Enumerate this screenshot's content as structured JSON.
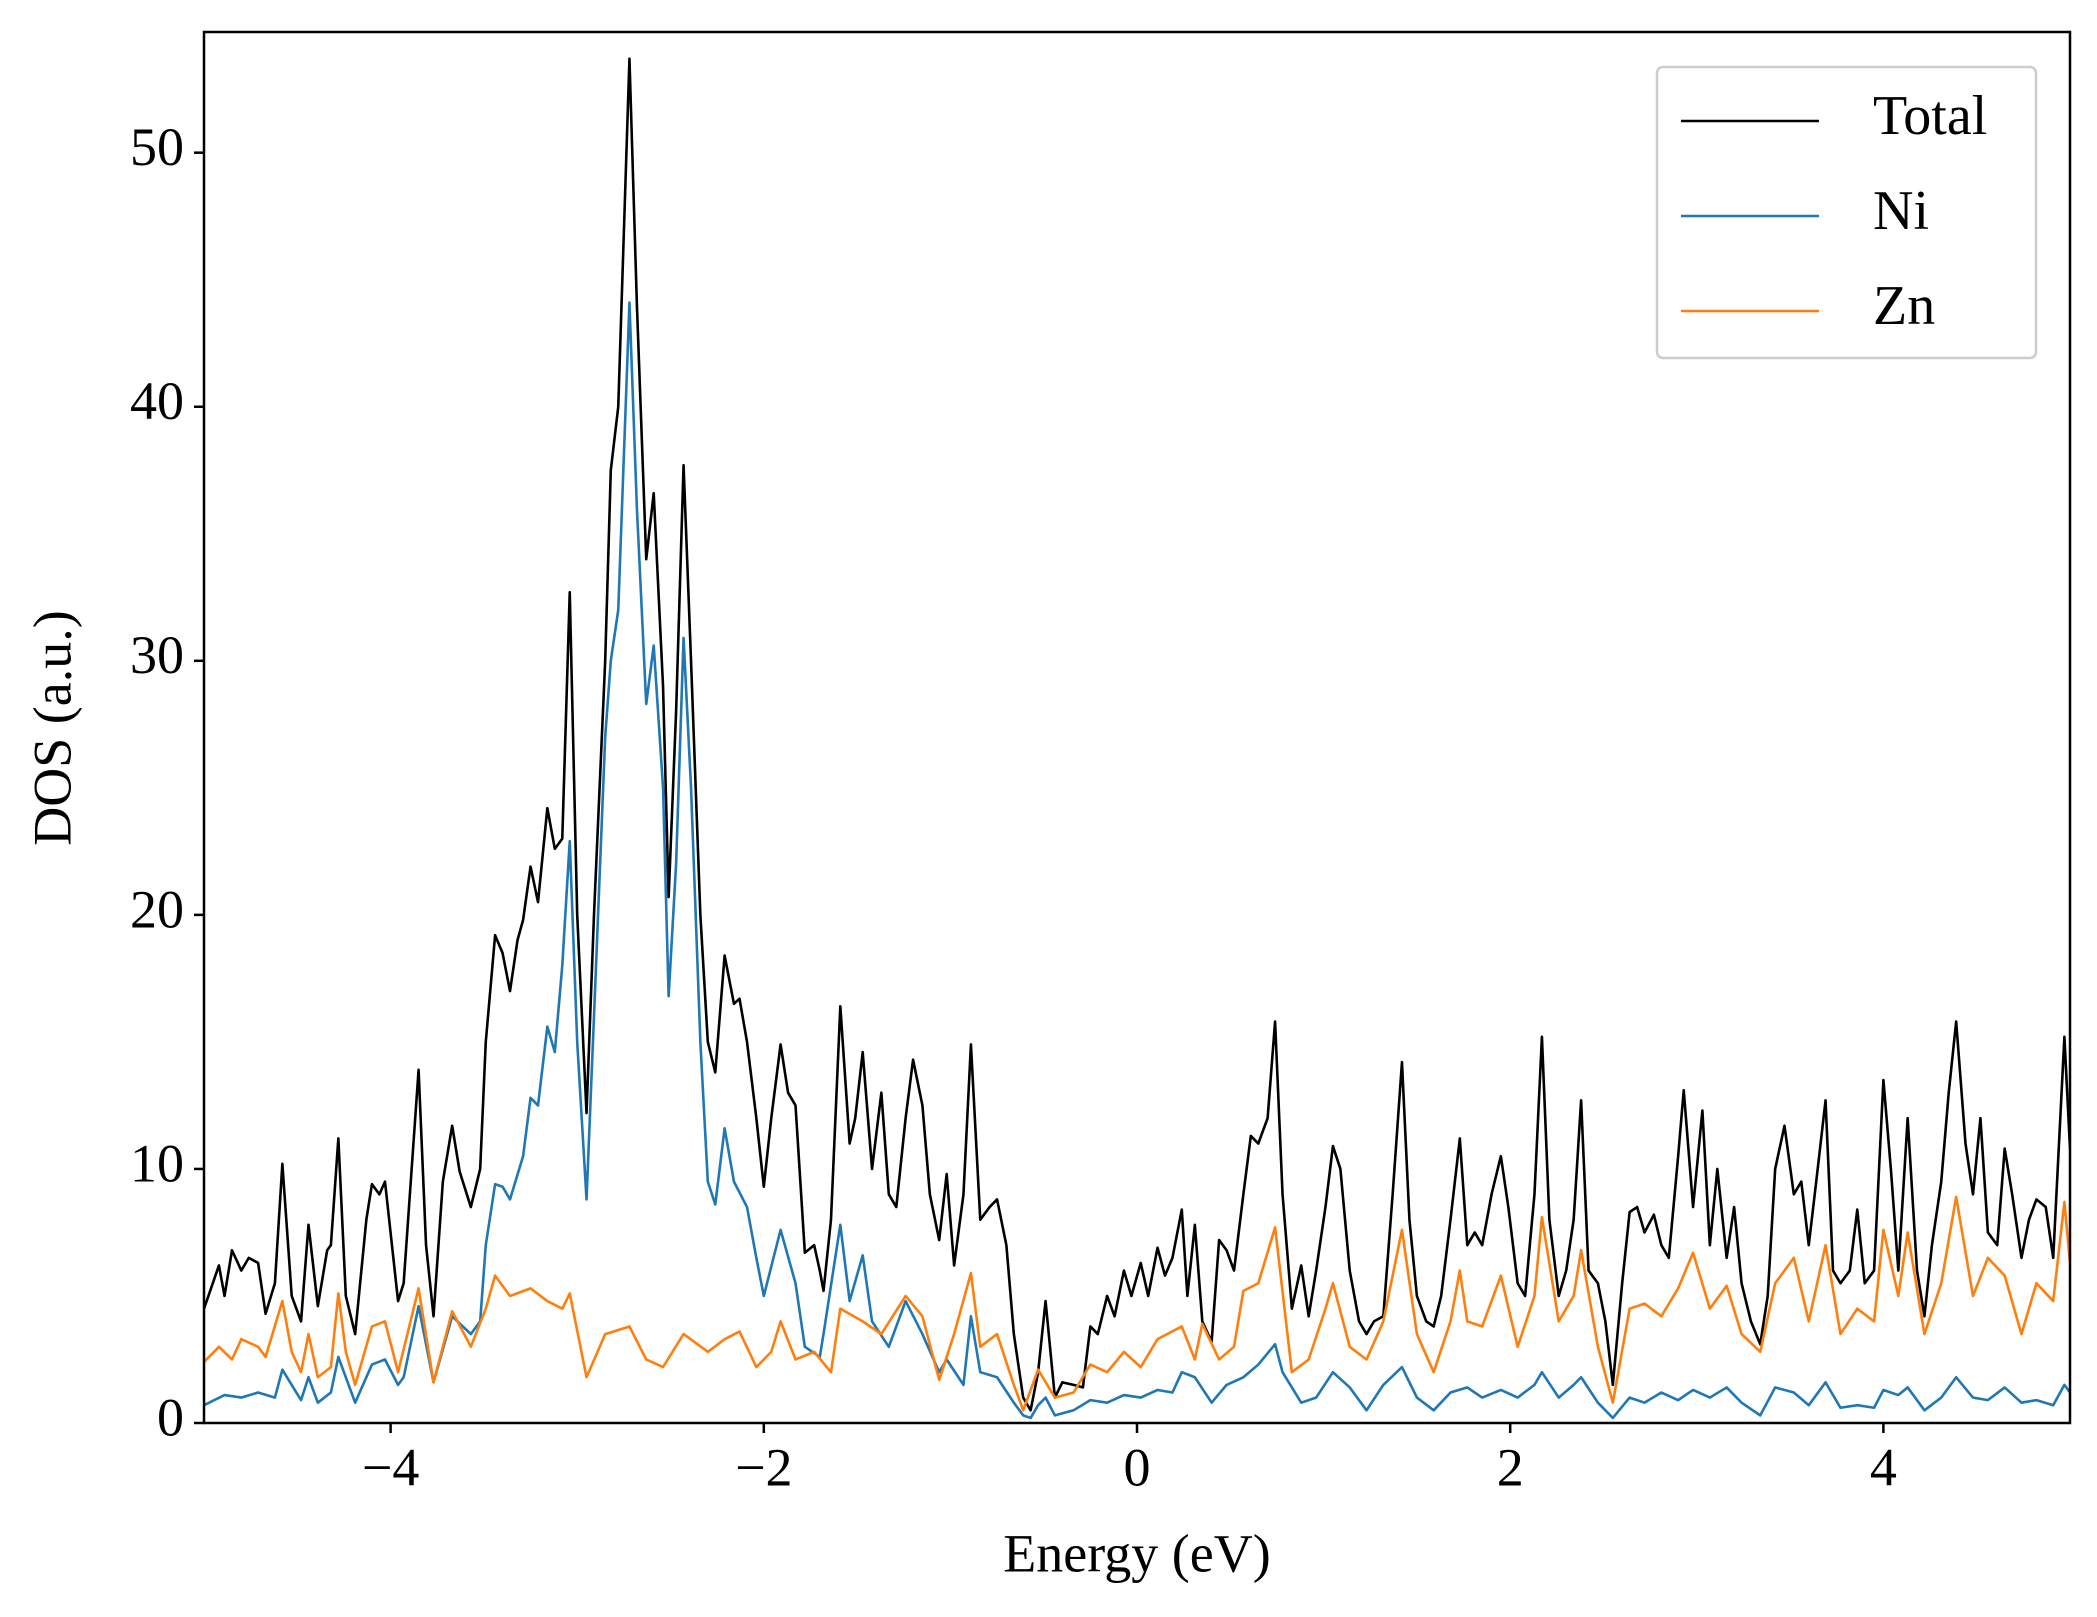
{
  "chart_data": {
    "type": "line",
    "xlabel": "Energy (eV)",
    "ylabel": "DOS (a.u.)",
    "xlim": [
      -5,
      5
    ],
    "ylim": [
      0,
      54.75
    ],
    "xticks": [
      {
        "value": -4,
        "label": "−4"
      },
      {
        "value": -2,
        "label": "−2"
      },
      0,
      2,
      4
    ],
    "yticks": [
      0,
      10,
      20,
      30,
      40,
      50
    ],
    "legend": "upper right",
    "grid": false,
    "series": [
      {
        "name": "Total",
        "color": "#000000",
        "x": [
          -5,
          -4.92,
          -4.89,
          -4.85,
          -4.8,
          -4.76,
          -4.71,
          -4.67,
          -4.62,
          -4.58,
          -4.53,
          -4.48,
          -4.44,
          -4.39,
          -4.34,
          -4.32,
          -4.28,
          -4.24,
          -4.19,
          -4.13,
          -4.1,
          -4.06,
          -4.03,
          -3.96,
          -3.93,
          -3.85,
          -3.81,
          -3.77,
          -3.72,
          -3.67,
          -3.63,
          -3.57,
          -3.52,
          -3.49,
          -3.44,
          -3.4,
          -3.36,
          -3.32,
          -3.29,
          -3.25,
          -3.21,
          -3.16,
          -3.12,
          -3.08,
          -3.04,
          -3.0,
          -2.95,
          -2.91,
          -2.85,
          -2.82,
          -2.78,
          -2.72,
          -2.68,
          -2.63,
          -2.59,
          -2.54,
          -2.51,
          -2.47,
          -2.43,
          -2.39,
          -2.34,
          -2.3,
          -2.26,
          -2.21,
          -2.16,
          -2.13,
          -2.09,
          -2.04,
          -2.0,
          -1.96,
          -1.91,
          -1.87,
          -1.83,
          -1.78,
          -1.73,
          -1.7,
          -1.68,
          -1.64,
          -1.59,
          -1.54,
          -1.51,
          -1.47,
          -1.42,
          -1.37,
          -1.33,
          -1.29,
          -1.24,
          -1.2,
          -1.15,
          -1.11,
          -1.06,
          -1.02,
          -0.98,
          -0.93,
          -0.89,
          -0.84,
          -0.79,
          -0.75,
          -0.7,
          -0.66,
          -0.61,
          -0.57,
          -0.53,
          -0.49,
          -0.44,
          -0.4,
          -0.34,
          -0.29,
          -0.25,
          -0.21,
          -0.16,
          -0.12,
          -0.07,
          -0.03,
          0.02,
          0.06,
          0.11,
          0.15,
          0.19,
          0.24,
          0.27,
          0.31,
          0.35,
          0.4,
          0.44,
          0.48,
          0.52,
          0.57,
          0.61,
          0.65,
          0.7,
          0.74,
          0.78,
          0.83,
          0.88,
          0.92,
          0.96,
          1.01,
          1.05,
          1.09,
          1.14,
          1.19,
          1.23,
          1.27,
          1.32,
          1.37,
          1.42,
          1.46,
          1.5,
          1.55,
          1.59,
          1.63,
          1.68,
          1.73,
          1.77,
          1.81,
          1.85,
          1.9,
          1.95,
          1.99,
          2.04,
          2.08,
          2.13,
          2.17,
          2.21,
          2.26,
          2.3,
          2.34,
          2.38,
          2.42,
          2.47,
          2.51,
          2.55,
          2.6,
          2.64,
          2.68,
          2.72,
          2.77,
          2.81,
          2.85,
          2.9,
          2.93,
          2.98,
          3.03,
          3.07,
          3.11,
          3.16,
          3.2,
          3.24,
          3.29,
          3.34,
          3.38,
          3.42,
          3.47,
          3.52,
          3.56,
          3.6,
          3.64,
          3.69,
          3.73,
          3.77,
          3.82,
          3.86,
          3.9,
          3.95,
          4.0,
          4.04,
          4.08,
          4.13,
          4.18,
          4.22,
          4.26,
          4.31,
          4.35,
          4.39,
          4.44,
          4.48,
          4.52,
          4.56,
          4.61,
          4.65,
          4.69,
          4.74,
          4.78,
          4.82,
          4.87,
          4.91,
          4.97,
          5.0
        ],
        "values": [
          4.5,
          6.2,
          5.0,
          6.8,
          6.0,
          6.5,
          6.3,
          4.3,
          5.5,
          10.2,
          5.0,
          4.0,
          7.8,
          4.6,
          6.8,
          7.0,
          11.2,
          5.0,
          3.5,
          8.0,
          9.4,
          9.0,
          9.5,
          4.8,
          5.5,
          13.9,
          7.0,
          4.2,
          9.5,
          11.7,
          9.9,
          8.5,
          10.0,
          15.0,
          19.2,
          18.5,
          17.0,
          19.0,
          19.8,
          21.9,
          20.5,
          24.2,
          22.6,
          23.0,
          32.7,
          20.0,
          12.2,
          20.0,
          30.0,
          37.5,
          40.0,
          53.7,
          44.0,
          34.0,
          36.6,
          29.0,
          20.7,
          28.0,
          37.7,
          30.0,
          20.0,
          15.0,
          13.8,
          18.4,
          16.5,
          16.7,
          15.0,
          12.0,
          9.3,
          12.0,
          14.9,
          13.0,
          12.5,
          6.7,
          7.0,
          6.0,
          5.2,
          8.0,
          16.4,
          11.0,
          12.0,
          14.6,
          10.0,
          13.0,
          9.0,
          8.5,
          12.0,
          14.3,
          12.5,
          9.0,
          7.2,
          9.8,
          6.2,
          9.0,
          14.9,
          8.0,
          8.5,
          8.8,
          7.0,
          3.5,
          1.0,
          0.5,
          2.0,
          4.8,
          1.0,
          1.6,
          1.5,
          1.4,
          3.8,
          3.5,
          5.0,
          4.2,
          6.0,
          5.0,
          6.3,
          5.0,
          6.9,
          5.8,
          6.5,
          8.4,
          5.0,
          7.8,
          4.0,
          3.2,
          7.2,
          6.8,
          6.0,
          9.0,
          11.3,
          11.0,
          12.0,
          15.8,
          9.0,
          4.5,
          6.2,
          4.2,
          6.0,
          8.5,
          10.9,
          10.0,
          6.0,
          4.0,
          3.5,
          4.0,
          4.2,
          9.0,
          14.2,
          8.0,
          5.0,
          4.0,
          3.8,
          5.0,
          8.0,
          11.2,
          7.0,
          7.5,
          7.0,
          9.0,
          10.5,
          8.5,
          5.5,
          5.0,
          9.0,
          15.2,
          8.0,
          5.0,
          6.0,
          8.0,
          12.7,
          6.0,
          5.5,
          4.0,
          1.5,
          5.5,
          8.3,
          8.5,
          7.5,
          8.2,
          7.0,
          6.5,
          10.5,
          13.1,
          8.5,
          12.3,
          7.0,
          10.0,
          6.5,
          8.5,
          5.5,
          4.0,
          3.1,
          5.0,
          10.0,
          11.7,
          9.0,
          9.5,
          7.0,
          9.5,
          12.7,
          6.0,
          5.5,
          6.0,
          8.4,
          5.5,
          6.0,
          13.5,
          10.0,
          6.0,
          12.0,
          6.0,
          4.2,
          7.0,
          9.5,
          13.0,
          15.8,
          11.0,
          9.0,
          12.0,
          7.5,
          7.0,
          10.8,
          9.0,
          6.5,
          8.0,
          8.8,
          8.5,
          6.5,
          15.2,
          10.8
        ]
      },
      {
        "name": "Ni",
        "color": "#1f77b4",
        "x": [
          -5,
          -4.89,
          -4.8,
          -4.71,
          -4.62,
          -4.58,
          -4.48,
          -4.44,
          -4.39,
          -4.32,
          -4.28,
          -4.19,
          -4.1,
          -4.03,
          -3.96,
          -3.93,
          -3.85,
          -3.77,
          -3.67,
          -3.57,
          -3.52,
          -3.49,
          -3.44,
          -3.4,
          -3.36,
          -3.29,
          -3.25,
          -3.21,
          -3.16,
          -3.12,
          -3.08,
          -3.04,
          -3.0,
          -2.95,
          -2.91,
          -2.85,
          -2.82,
          -2.78,
          -2.72,
          -2.68,
          -2.63,
          -2.59,
          -2.54,
          -2.51,
          -2.47,
          -2.43,
          -2.39,
          -2.34,
          -2.3,
          -2.26,
          -2.21,
          -2.16,
          -2.09,
          -2.04,
          -2.0,
          -1.91,
          -1.83,
          -1.78,
          -1.7,
          -1.68,
          -1.59,
          -1.54,
          -1.47,
          -1.42,
          -1.33,
          -1.24,
          -1.15,
          -1.06,
          -1.02,
          -0.93,
          -0.89,
          -0.84,
          -0.75,
          -0.66,
          -0.61,
          -0.57,
          -0.53,
          -0.49,
          -0.44,
          -0.34,
          -0.25,
          -0.16,
          -0.07,
          0.02,
          0.11,
          0.19,
          0.24,
          0.31,
          0.4,
          0.48,
          0.57,
          0.65,
          0.74,
          0.78,
          0.88,
          0.96,
          1.05,
          1.14,
          1.23,
          1.32,
          1.42,
          1.5,
          1.59,
          1.68,
          1.77,
          1.85,
          1.95,
          2.04,
          2.13,
          2.17,
          2.26,
          2.34,
          2.38,
          2.47,
          2.55,
          2.64,
          2.72,
          2.81,
          2.9,
          2.98,
          3.07,
          3.16,
          3.24,
          3.34,
          3.42,
          3.52,
          3.6,
          3.69,
          3.77,
          3.86,
          3.95,
          4.0,
          4.08,
          4.13,
          4.22,
          4.31,
          4.39,
          4.48,
          4.56,
          4.65,
          4.74,
          4.82,
          4.91,
          4.97,
          5.0
        ],
        "values": [
          0.7,
          1.1,
          1.0,
          1.2,
          1.0,
          2.1,
          0.9,
          1.8,
          0.8,
          1.2,
          2.6,
          0.8,
          2.3,
          2.5,
          1.5,
          1.8,
          4.6,
          1.6,
          4.2,
          3.5,
          4.0,
          7.0,
          9.4,
          9.3,
          8.8,
          10.5,
          12.8,
          12.5,
          15.6,
          14.6,
          18.0,
          22.9,
          15.0,
          8.8,
          16.0,
          27.0,
          30.0,
          32.0,
          44.1,
          36.0,
          28.3,
          30.6,
          25.0,
          16.8,
          22.0,
          30.9,
          25.0,
          15.0,
          9.5,
          8.6,
          11.6,
          9.5,
          8.5,
          6.5,
          5.0,
          7.6,
          5.5,
          3.0,
          2.6,
          3.5,
          7.8,
          4.8,
          6.6,
          4.0,
          3.0,
          4.8,
          3.5,
          2.0,
          2.5,
          1.5,
          4.2,
          2.0,
          1.8,
          0.8,
          0.3,
          0.2,
          0.7,
          1.0,
          0.3,
          0.5,
          0.9,
          0.8,
          1.1,
          1.0,
          1.3,
          1.2,
          2.0,
          1.8,
          0.8,
          1.5,
          1.8,
          2.3,
          3.1,
          2.0,
          0.8,
          1.0,
          2.0,
          1.4,
          0.5,
          1.5,
          2.2,
          1.0,
          0.5,
          1.2,
          1.4,
          1.0,
          1.3,
          1.0,
          1.5,
          2.0,
          1.0,
          1.5,
          1.8,
          0.8,
          0.2,
          1.0,
          0.8,
          1.2,
          0.9,
          1.3,
          1.0,
          1.4,
          0.8,
          0.3,
          1.4,
          1.2,
          0.7,
          1.6,
          0.6,
          0.7,
          0.6,
          1.3,
          1.1,
          1.4,
          0.5,
          1.0,
          1.8,
          1.0,
          0.9,
          1.4,
          0.8,
          0.9,
          0.7,
          1.5,
          1.2
        ]
      },
      {
        "name": "Zn",
        "color": "#ff7f0e",
        "x": [
          -5,
          -4.92,
          -4.85,
          -4.8,
          -4.71,
          -4.67,
          -4.58,
          -4.53,
          -4.48,
          -4.44,
          -4.39,
          -4.32,
          -4.28,
          -4.24,
          -4.19,
          -4.1,
          -4.03,
          -3.96,
          -3.85,
          -3.77,
          -3.67,
          -3.57,
          -3.49,
          -3.44,
          -3.36,
          -3.25,
          -3.16,
          -3.08,
          -3.04,
          -2.95,
          -2.85,
          -2.72,
          -2.63,
          -2.54,
          -2.43,
          -2.3,
          -2.21,
          -2.13,
          -2.04,
          -1.96,
          -1.91,
          -1.83,
          -1.73,
          -1.64,
          -1.59,
          -1.47,
          -1.37,
          -1.24,
          -1.15,
          -1.06,
          -0.98,
          -0.89,
          -0.84,
          -0.75,
          -0.66,
          -0.61,
          -0.53,
          -0.44,
          -0.34,
          -0.25,
          -0.16,
          -0.07,
          0.02,
          0.11,
          0.24,
          0.31,
          0.35,
          0.44,
          0.52,
          0.57,
          0.65,
          0.74,
          0.83,
          0.92,
          1.01,
          1.05,
          1.14,
          1.23,
          1.32,
          1.42,
          1.5,
          1.59,
          1.68,
          1.73,
          1.77,
          1.85,
          1.95,
          2.04,
          2.13,
          2.17,
          2.26,
          2.34,
          2.38,
          2.47,
          2.55,
          2.64,
          2.72,
          2.81,
          2.9,
          2.98,
          3.07,
          3.16,
          3.24,
          3.34,
          3.42,
          3.52,
          3.6,
          3.69,
          3.77,
          3.86,
          3.95,
          4.0,
          4.08,
          4.13,
          4.22,
          4.31,
          4.39,
          4.48,
          4.56,
          4.65,
          4.74,
          4.82,
          4.91,
          4.97,
          5.0
        ],
        "values": [
          2.4,
          3.0,
          2.5,
          3.3,
          3.0,
          2.6,
          4.8,
          2.8,
          2.0,
          3.5,
          1.8,
          2.2,
          5.1,
          2.8,
          1.5,
          3.8,
          4.0,
          2.0,
          5.3,
          1.6,
          4.4,
          3.0,
          4.5,
          5.8,
          5.0,
          5.3,
          4.8,
          4.5,
          5.1,
          1.8,
          3.5,
          3.8,
          2.5,
          2.2,
          3.5,
          2.8,
          3.3,
          3.6,
          2.2,
          2.8,
          4.0,
          2.5,
          2.8,
          2.0,
          4.5,
          4.0,
          3.5,
          5.0,
          4.2,
          1.7,
          3.5,
          5.9,
          3.0,
          3.5,
          1.5,
          0.5,
          2.1,
          1.0,
          1.2,
          2.3,
          2.0,
          2.8,
          2.2,
          3.3,
          3.8,
          2.5,
          3.9,
          2.5,
          3.0,
          5.2,
          5.5,
          7.7,
          2.0,
          2.5,
          4.5,
          5.5,
          3.0,
          2.5,
          4.0,
          7.6,
          3.5,
          2.0,
          4.0,
          6.0,
          4.0,
          3.8,
          5.8,
          3.0,
          5.0,
          8.1,
          4.0,
          5.0,
          6.8,
          3.0,
          0.8,
          4.5,
          4.7,
          4.2,
          5.3,
          6.7,
          4.5,
          5.4,
          3.5,
          2.8,
          5.5,
          6.5,
          4.0,
          7.0,
          3.5,
          4.5,
          4.0,
          7.6,
          5.0,
          7.5,
          3.5,
          5.5,
          8.9,
          5.0,
          6.5,
          5.8,
          3.5,
          5.5,
          4.8,
          8.7,
          6.3
        ]
      }
    ]
  }
}
